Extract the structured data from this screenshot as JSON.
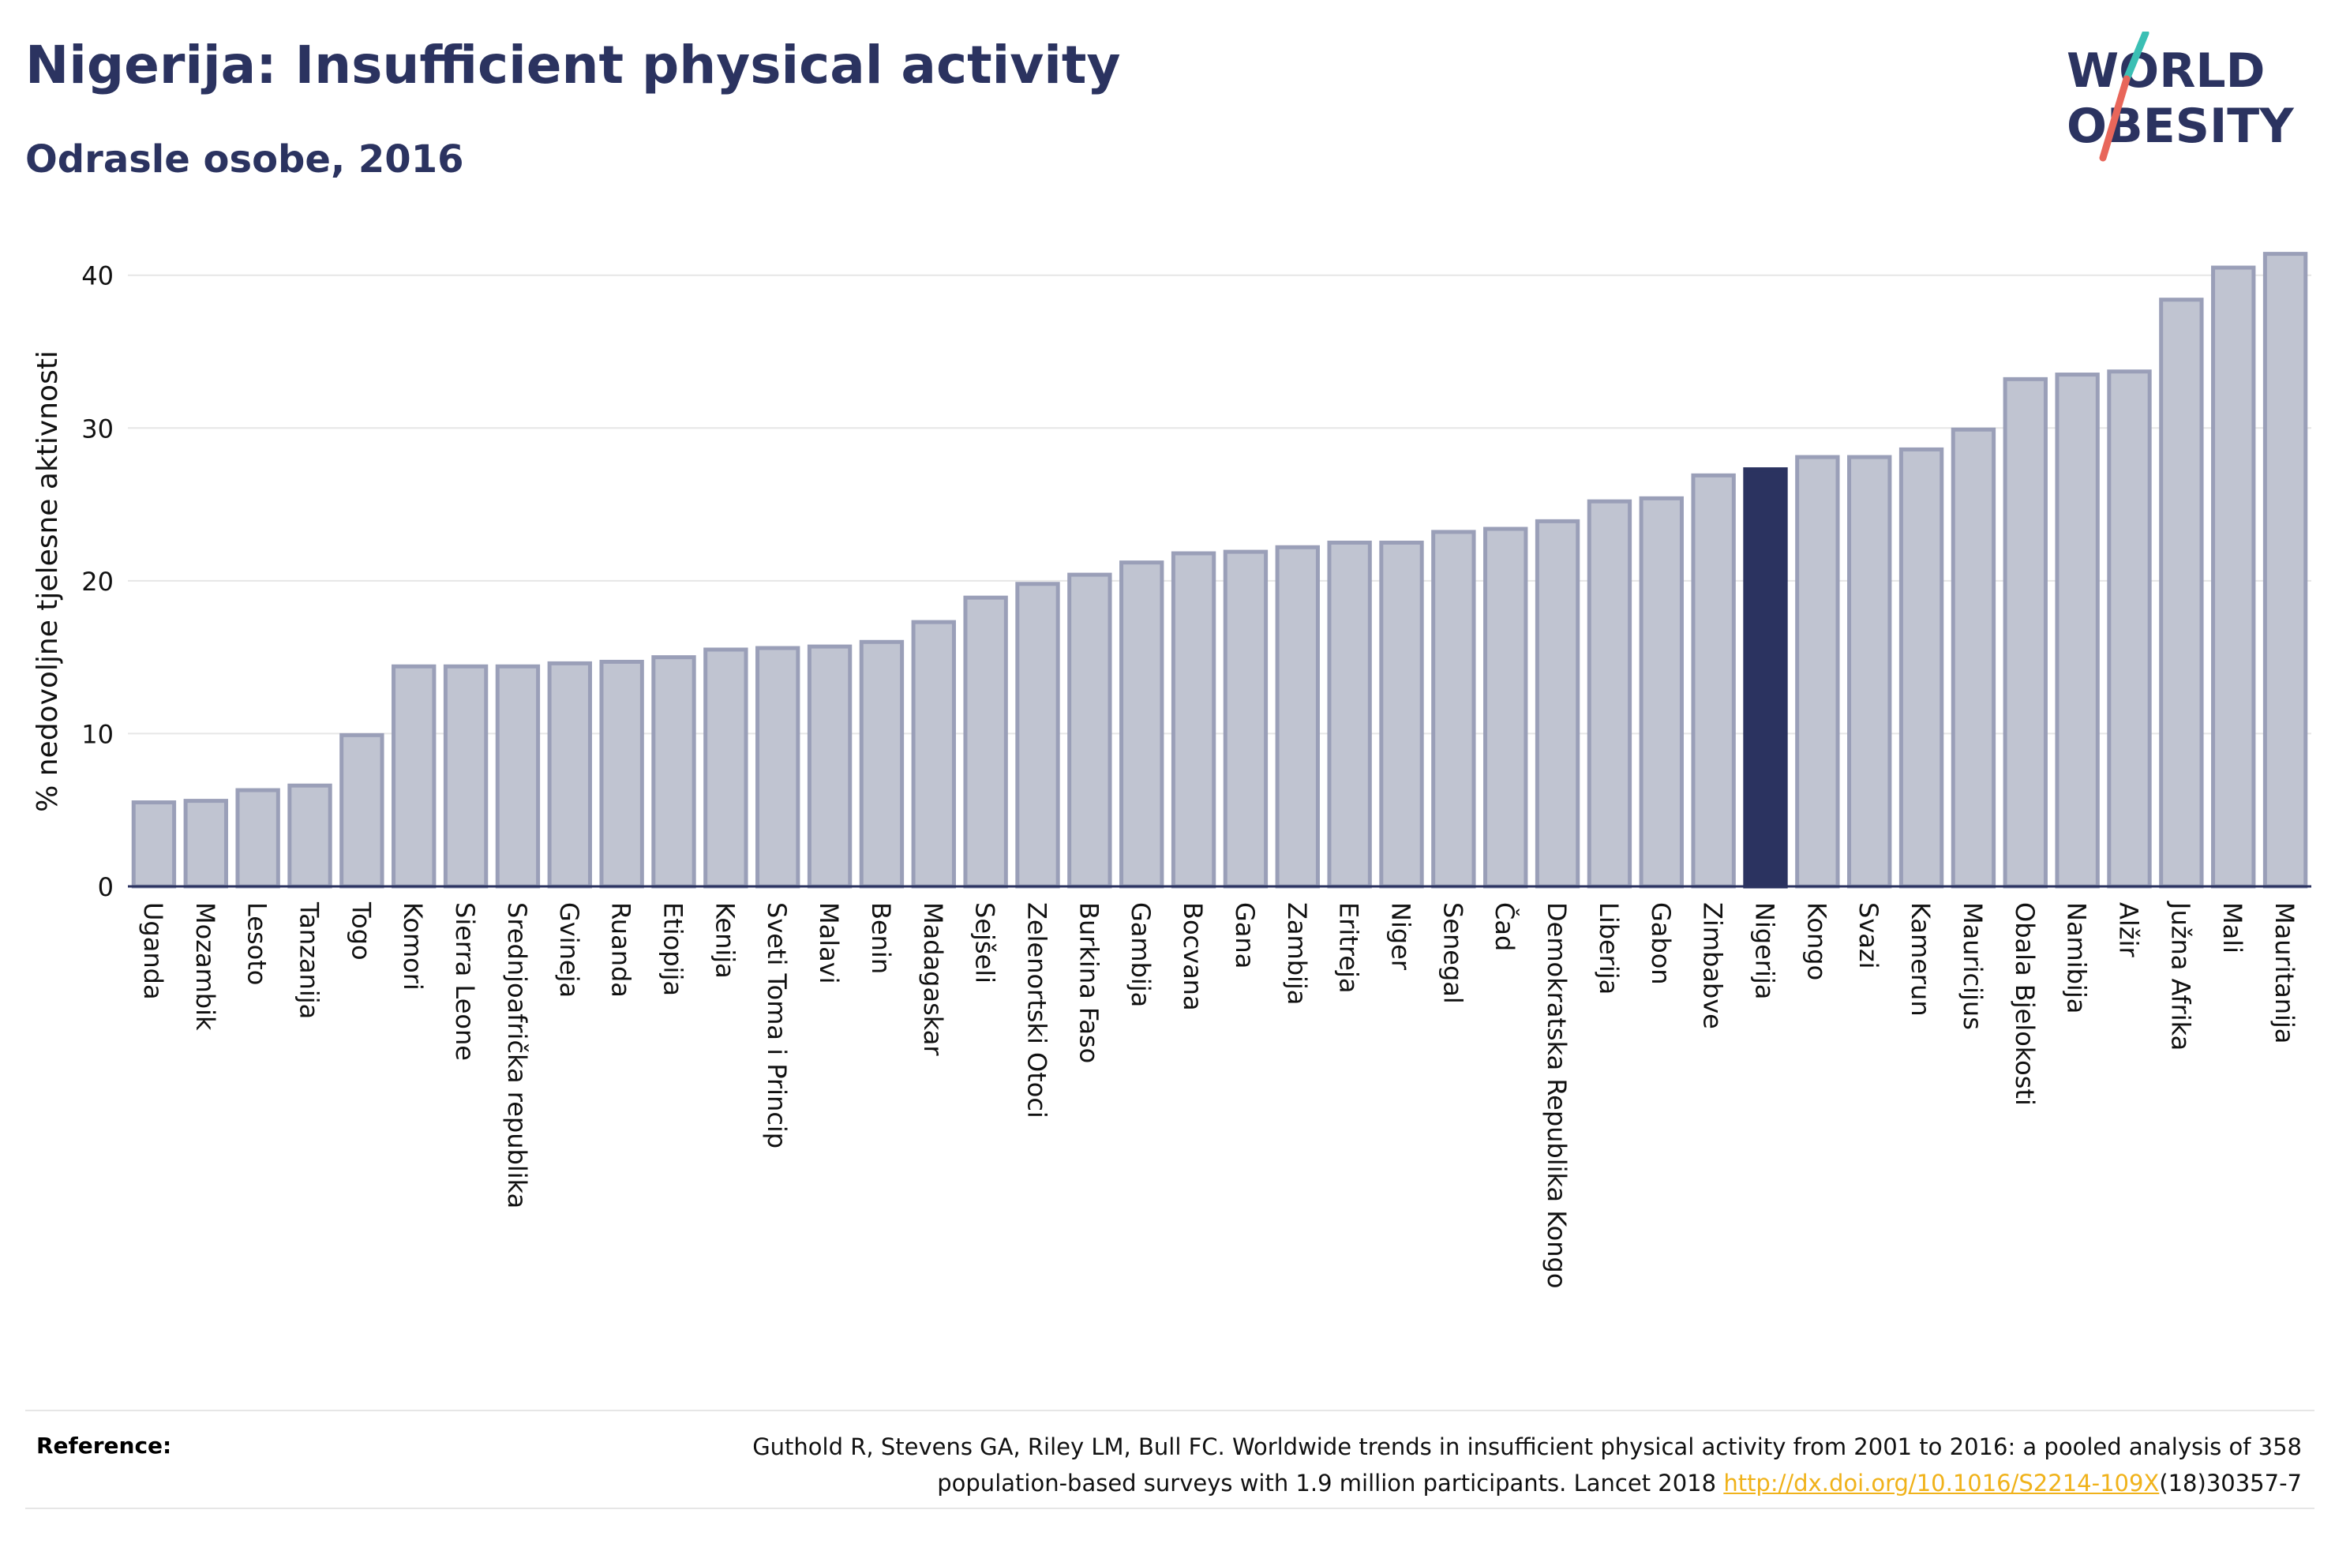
{
  "header": {
    "title": "Nigerija: Insufficient physical activity",
    "subtitle": "Odrasle osobe, 2016"
  },
  "logo": {
    "line1": "WORLD",
    "line2": "OBESITY",
    "colors": {
      "text": "#2b3360",
      "slash_top": "#3bbfb4",
      "slash_bottom": "#e8665a"
    }
  },
  "colors": {
    "bar_fill": "#c0c4d1",
    "bar_stroke": "#9a9fb8",
    "highlight": "#2b3360",
    "gridline": "#e6e6e6",
    "axis": "#2b3360"
  },
  "chart_data": {
    "type": "bar",
    "title": "",
    "xlabel": "",
    "ylabel": "% nedovoljne tjelesne aktivnosti",
    "ylim": [
      0,
      42
    ],
    "yticks": [
      0,
      10,
      20,
      30,
      40
    ],
    "grid": true,
    "highlight": "Nigerija",
    "categories": [
      "Uganda",
      "Mozambik",
      "Lesoto",
      "Tanzanija",
      "Togo",
      "Komori",
      "Sierra Leone",
      "Srednjoafrička republika",
      "Gvineja",
      "Ruanda",
      "Etiopija",
      "Kenija",
      "Sveti Toma i Princip",
      "Malavi",
      "Benin",
      "Madagaskar",
      "Sejšeli",
      "Zelenortski Otoci",
      "Burkina Faso",
      "Gambija",
      "Bocvana",
      "Gana",
      "Zambija",
      "Eritreja",
      "Niger",
      "Senegal",
      "Čad",
      "Demokratska Republika Kongo",
      "Liberija",
      "Gabon",
      "Zimbabve",
      "Nigerija",
      "Kongo",
      "Svazi",
      "Kamerun",
      "Mauricijus",
      "Obala Bjelokosti",
      "Namibija",
      "Alžir",
      "Južna Afrika",
      "Mali",
      "Mauritanija"
    ],
    "values": [
      5.5,
      5.6,
      6.3,
      6.6,
      9.9,
      14.4,
      14.4,
      14.4,
      14.6,
      14.7,
      15.0,
      15.5,
      15.6,
      15.7,
      16.0,
      17.3,
      18.9,
      19.8,
      20.4,
      21.2,
      21.8,
      21.9,
      22.2,
      22.5,
      22.5,
      23.2,
      23.4,
      23.9,
      25.2,
      25.4,
      26.9,
      27.3,
      28.1,
      28.1,
      28.6,
      29.9,
      33.2,
      33.5,
      33.7,
      38.4,
      40.5,
      41.4
    ]
  },
  "reference": {
    "label": "Reference:",
    "text_line1": "Guthold R, Stevens GA, Riley LM, Bull FC. Worldwide trends in insufficient physical activity from 2001 to 2016: a pooled analysis of 358",
    "text_line2": "population-based surveys with 1.9 million participants. Lancet 2018 ",
    "link": "http://dx.doi.org/10.1016/S2214-109X",
    "suffix": "(18)30357-7"
  }
}
